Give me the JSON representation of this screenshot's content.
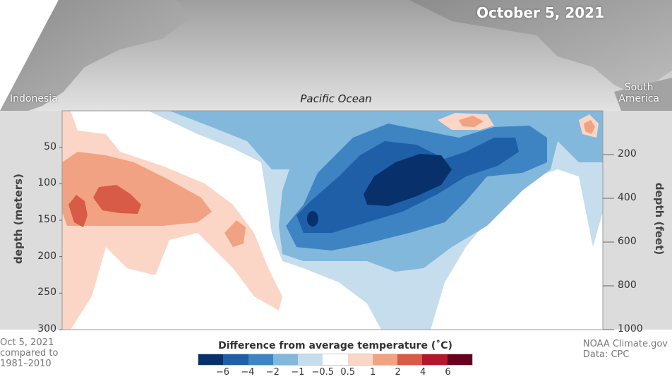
{
  "date": "October 5, 2021",
  "regions": {
    "left": "Indonesia",
    "center": "Pacific Ocean",
    "right_line1": "South",
    "right_line2": "America"
  },
  "footer": {
    "left_line1": "Oct 5, 2021",
    "left_line2": "compared to",
    "left_line3": "1981–2010",
    "right_line1": "NOAA Climate.gov",
    "right_line2": "Data: CPC"
  },
  "colors": {
    "land": "#9a9a9a",
    "sea_top": "#e0e0e0",
    "plot_background": "#ffffff",
    "panel": "#dcdcdc"
  },
  "chart_data": {
    "type": "heatmap",
    "title": "Difference from average temperature (˚C)",
    "ylabel_left": "depth (meters)",
    "ylabel_right": "depth (feet)",
    "ylim_meters": [
      0,
      300
    ],
    "ylim_feet": [
      0,
      1000
    ],
    "y_ticks_meters": [
      50,
      100,
      150,
      200,
      250,
      300
    ],
    "y_ticks_feet": [
      200,
      400,
      600,
      800,
      1000
    ],
    "x_extent": [
      "Indonesia",
      "South America"
    ],
    "legend": {
      "tick_labels": [
        "−6",
        "−4",
        "−2",
        "−1",
        "−0.5",
        "0.5",
        "1",
        "2",
        "4",
        "6"
      ],
      "colors": [
        "#08306b",
        "#1f5fa8",
        "#3f84c2",
        "#82b8dc",
        "#c5ddec",
        "#ffffff",
        "#fbd6c6",
        "#f1a283",
        "#d75b46",
        "#b2182b",
        "#67001f"
      ]
    },
    "anomalies": [
      {
        "description": "warm",
        "longitude_fraction": 0.1,
        "depth_m": 120,
        "value": 2
      },
      {
        "description": "warm",
        "longitude_fraction": 0.03,
        "depth_m": 140,
        "value": 2.5
      },
      {
        "description": "warm",
        "longitude_fraction": 0.32,
        "depth_m": 170,
        "value": 1
      },
      {
        "description": "cold core",
        "longitude_fraction": 0.61,
        "depth_m": 90,
        "value": -6
      },
      {
        "description": "cold",
        "longitude_fraction": 0.8,
        "depth_m": 55,
        "value": -4
      },
      {
        "description": "cold",
        "longitude_fraction": 0.46,
        "depth_m": 150,
        "value": -5
      }
    ]
  }
}
